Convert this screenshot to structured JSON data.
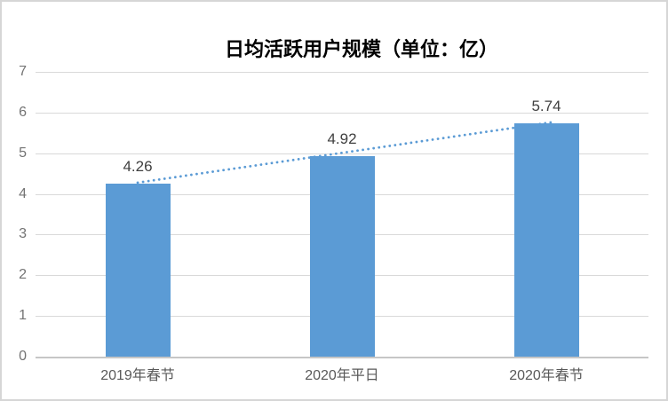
{
  "window": {
    "background": "#ffffff",
    "frame_border_color": "#d6d6d6"
  },
  "chart_data": {
    "type": "bar",
    "title": "日均活跃用户规模（单位：亿）",
    "categories": [
      "2019年春节",
      "2020年平日",
      "2020年春节"
    ],
    "values": [
      4.26,
      4.92,
      5.74
    ],
    "data_labels": [
      "4.26",
      "4.92",
      "5.74"
    ],
    "ylim": [
      0,
      7
    ],
    "yticks": [
      0,
      1,
      2,
      3,
      4,
      5,
      6,
      7
    ],
    "grid": true,
    "legend": "none",
    "bar_color": "#5b9bd5",
    "trendline": {
      "type": "linear",
      "style": "dotted",
      "color": "#5b9bd5"
    },
    "colors": {
      "gridline": "#d9d9d9",
      "axis_line": "#c6c6c6",
      "tick_label": "#737373",
      "category_label": "#595959",
      "data_label": "#404040",
      "title": "#000000"
    }
  }
}
